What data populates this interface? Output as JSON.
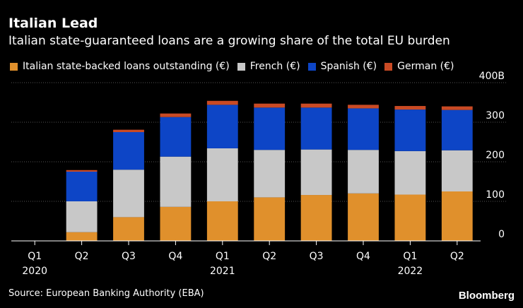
{
  "header": {
    "title": "Italian Lead",
    "subtitle": "Italian state-guaranteed loans are a growing share of the total EU burden"
  },
  "footer": {
    "source": "Source: European Banking Authority (EBA)",
    "brand": "Bloomberg"
  },
  "colors": {
    "background": "#000000",
    "italian": "#e0902c",
    "french": "#c8c8c8",
    "spanish": "#0d45c6",
    "german": "#c94a24",
    "gridline": "#555555"
  },
  "chart_data": {
    "type": "bar",
    "stacked": true,
    "categories": [
      "Q1",
      "Q2",
      "Q3",
      "Q4",
      "Q1",
      "Q2",
      "Q3",
      "Q4",
      "Q1",
      "Q2"
    ],
    "year_labels": [
      {
        "category_index": 0,
        "label": "2020"
      },
      {
        "category_index": 4,
        "label": "2021"
      },
      {
        "category_index": 8,
        "label": "2022"
      }
    ],
    "series": [
      {
        "name": "Italian state-backed loans outstanding (€)",
        "color": "#e0902c",
        "values": [
          0,
          22,
          60,
          86,
          100,
          110,
          116,
          120,
          117,
          125
        ]
      },
      {
        "name": "French (€)",
        "color": "#c8c8c8",
        "values": [
          0,
          78,
          120,
          127,
          134,
          120,
          115,
          110,
          110,
          104
        ]
      },
      {
        "name": "Spanish (€)",
        "color": "#0d45c6",
        "values": [
          0,
          75,
          95,
          100,
          110,
          107,
          106,
          105,
          105,
          102
        ]
      },
      {
        "name": "German (€)",
        "color": "#c94a24",
        "values": [
          0,
          4,
          6,
          9,
          10,
          10,
          10,
          9,
          9,
          9
        ]
      }
    ],
    "y_ticks": [
      0,
      100,
      200,
      300,
      400
    ],
    "y_tick_labels": [
      "0",
      "100",
      "200",
      "300",
      "400B"
    ],
    "ylim": [
      0,
      400
    ],
    "title": "Italian Lead",
    "xlabel": "",
    "ylabel": "",
    "grid": true,
    "legend": "top"
  }
}
